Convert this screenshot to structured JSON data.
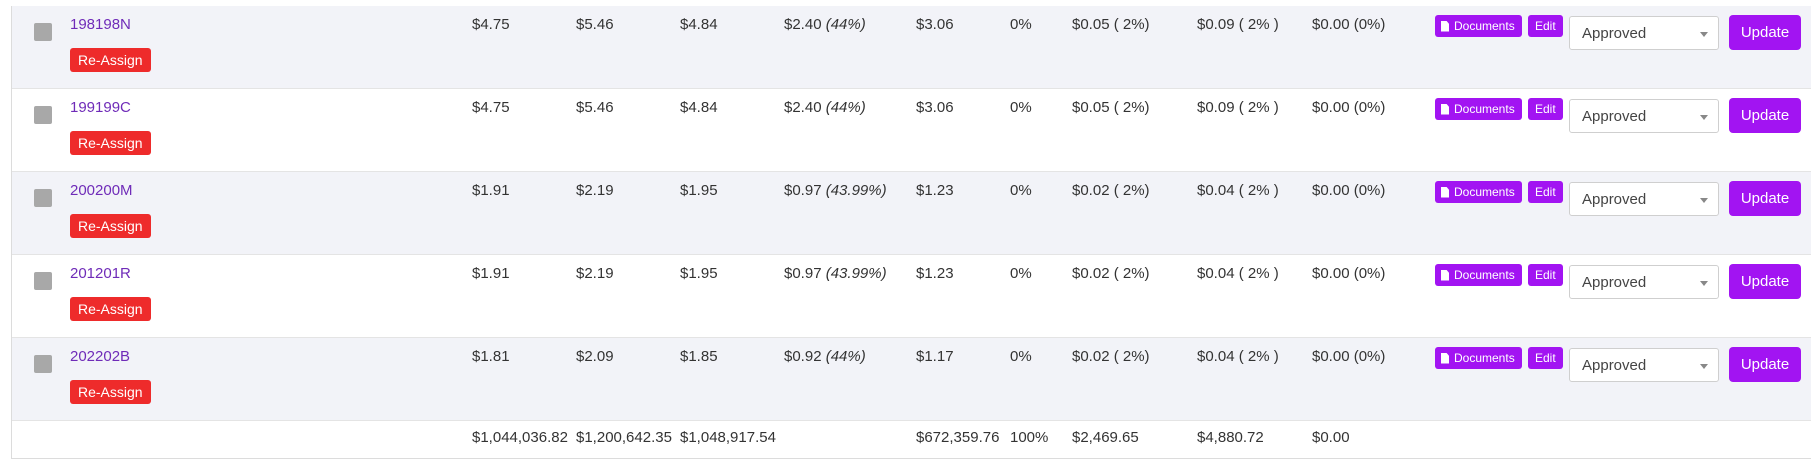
{
  "rows": [
    {
      "id": "198198N",
      "reassign": "Re-Assign",
      "v1": "$4.75",
      "v2": "$5.46",
      "v3": "$4.84",
      "v4": "$2.40",
      "v4pct": "(44%)",
      "v5": "$3.06",
      "v6": "0%",
      "v7": "$0.05 ( 2%)",
      "v8": "$0.09 ( 2% )",
      "v9": "$0.00 (0%)",
      "documents": "Documents",
      "edit": "Edit",
      "status": "Approved",
      "update": "Update"
    },
    {
      "id": "199199C",
      "reassign": "Re-Assign",
      "v1": "$4.75",
      "v2": "$5.46",
      "v3": "$4.84",
      "v4": "$2.40",
      "v4pct": "(44%)",
      "v5": "$3.06",
      "v6": "0%",
      "v7": "$0.05 ( 2%)",
      "v8": "$0.09 ( 2% )",
      "v9": "$0.00 (0%)",
      "documents": "Documents",
      "edit": "Edit",
      "status": "Approved",
      "update": "Update"
    },
    {
      "id": "200200M",
      "reassign": "Re-Assign",
      "v1": "$1.91",
      "v2": "$2.19",
      "v3": "$1.95",
      "v4": "$0.97",
      "v4pct": "(43.99%)",
      "v5": "$1.23",
      "v6": "0%",
      "v7": "$0.02 ( 2%)",
      "v8": "$0.04 ( 2% )",
      "v9": "$0.00 (0%)",
      "documents": "Documents",
      "edit": "Edit",
      "status": "Approved",
      "update": "Update"
    },
    {
      "id": "201201R",
      "reassign": "Re-Assign",
      "v1": "$1.91",
      "v2": "$2.19",
      "v3": "$1.95",
      "v4": "$0.97",
      "v4pct": "(43.99%)",
      "v5": "$1.23",
      "v6": "0%",
      "v7": "$0.02 ( 2%)",
      "v8": "$0.04 ( 2% )",
      "v9": "$0.00 (0%)",
      "documents": "Documents",
      "edit": "Edit",
      "status": "Approved",
      "update": "Update"
    },
    {
      "id": "202202B",
      "reassign": "Re-Assign",
      "v1": "$1.81",
      "v2": "$2.09",
      "v3": "$1.85",
      "v4": "$0.92",
      "v4pct": "(44%)",
      "v5": "$1.17",
      "v6": "0%",
      "v7": "$0.02 ( 2%)",
      "v8": "$0.04 ( 2% )",
      "v9": "$0.00 (0%)",
      "documents": "Documents",
      "edit": "Edit",
      "status": "Approved",
      "update": "Update"
    }
  ],
  "totals": {
    "t1": "$1,044,036.82",
    "t2": "$1,200,642.35",
    "t3": "$1,048,917.54",
    "t5": "$672,359.76",
    "t6": "100%",
    "t7": "$2,469.65",
    "t8": "$4,880.72",
    "t9": "$0.00"
  },
  "colors": {
    "accent": "#a214f2",
    "danger": "#ee2b2b",
    "link": "#6f2bb8",
    "stripe": "#f2f3f8"
  },
  "icons": {
    "documents": "file-icon",
    "select_caret": "caret-down-icon"
  }
}
